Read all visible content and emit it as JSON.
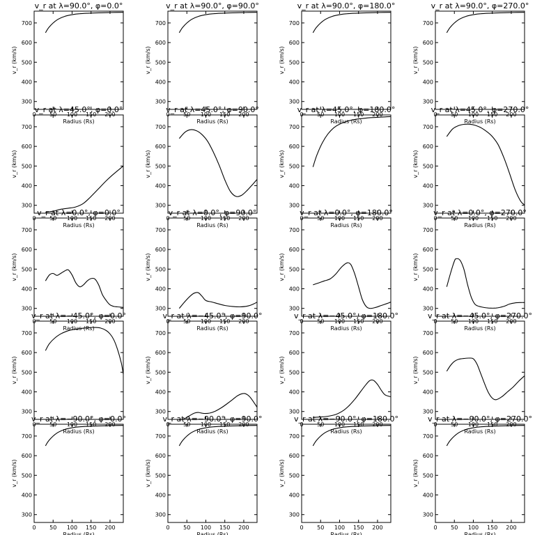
{
  "chart_data": [
    {
      "type": "line",
      "title": "v_r at λ=90.0°, φ=0.0°",
      "xlabel": "Radius (Rs)",
      "ylabel": "v_r (km/s)",
      "xlim": [
        0,
        235
      ],
      "ylim": [
        260,
        760
      ],
      "x": [
        30,
        40,
        60,
        80,
        100,
        120,
        150,
        180,
        200,
        235
      ],
      "values": [
        650,
        680,
        715,
        733,
        742,
        747,
        750,
        752,
        753,
        754
      ]
    },
    {
      "type": "line",
      "title": "v_r at λ=90.0°, φ=90.0°",
      "xlabel": "Radius (Rs)",
      "ylabel": "v_r (km/s)",
      "xlim": [
        0,
        235
      ],
      "ylim": [
        260,
        760
      ],
      "x": [
        30,
        40,
        60,
        80,
        100,
        120,
        150,
        180,
        200,
        235
      ],
      "values": [
        650,
        680,
        715,
        733,
        742,
        747,
        750,
        752,
        753,
        754
      ]
    },
    {
      "type": "line",
      "title": "v_r at λ=90.0°, φ=180.0°",
      "xlabel": "Radius (Rs)",
      "ylabel": "v_r (km/s)",
      "xlim": [
        0,
        235
      ],
      "ylim": [
        260,
        760
      ],
      "x": [
        30,
        40,
        60,
        80,
        100,
        120,
        150,
        180,
        200,
        235
      ],
      "values": [
        650,
        680,
        715,
        733,
        742,
        747,
        750,
        752,
        753,
        754
      ]
    },
    {
      "type": "line",
      "title": "v_r at λ=90.0°, φ=270.0°",
      "xlabel": "Radius (Rs)",
      "ylabel": "v_r (km/s)",
      "xlim": [
        0,
        235
      ],
      "ylim": [
        260,
        760
      ],
      "x": [
        30,
        40,
        60,
        80,
        100,
        120,
        150,
        180,
        200,
        235
      ],
      "values": [
        650,
        680,
        715,
        733,
        742,
        747,
        750,
        752,
        753,
        754
      ]
    },
    {
      "type": "line",
      "title": "v_r at λ=45.0°, φ=0.0°",
      "xlabel": "Radius (Rs)",
      "ylabel": "v_r (km/s)",
      "xlim": [
        0,
        235
      ],
      "ylim": [
        260,
        760
      ],
      "x": [
        30,
        50,
        70,
        90,
        110,
        130,
        150,
        170,
        190,
        210,
        235
      ],
      "values": [
        265,
        270,
        280,
        285,
        292,
        310,
        345,
        385,
        425,
        460,
        500
      ]
    },
    {
      "type": "line",
      "title": "v_r at λ=45.0°, φ=90.0°",
      "xlabel": "Radius (Rs)",
      "ylabel": "v_r (km/s)",
      "xlim": [
        0,
        235
      ],
      "ylim": [
        260,
        760
      ],
      "x": [
        30,
        45,
        60,
        75,
        90,
        105,
        120,
        135,
        150,
        165,
        180,
        195,
        210,
        225,
        235
      ],
      "values": [
        640,
        672,
        685,
        680,
        660,
        625,
        570,
        505,
        430,
        370,
        345,
        352,
        378,
        410,
        432
      ]
    },
    {
      "type": "line",
      "title": "v_r at λ=45.0°, φ=180.0°",
      "xlabel": "Radius (Rs)",
      "ylabel": "v_r (km/s)",
      "xlim": [
        0,
        235
      ],
      "ylim": [
        260,
        760
      ],
      "x": [
        30,
        40,
        55,
        70,
        85,
        100,
        120,
        140,
        160,
        180,
        200,
        220,
        235
      ],
      "values": [
        495,
        555,
        620,
        665,
        695,
        713,
        728,
        737,
        742,
        746,
        748,
        750,
        752
      ]
    },
    {
      "type": "line",
      "title": "v_r at λ=45.0°, φ=270.0°",
      "xlabel": "Radius (Rs)",
      "ylabel": "v_r (km/s)",
      "xlim": [
        0,
        235
      ],
      "ylim": [
        260,
        760
      ],
      "x": [
        30,
        45,
        60,
        75,
        90,
        105,
        120,
        135,
        150,
        165,
        180,
        195,
        210,
        225,
        235
      ],
      "values": [
        650,
        688,
        705,
        712,
        713,
        707,
        695,
        676,
        650,
        610,
        545,
        465,
        380,
        320,
        302
      ]
    },
    {
      "type": "line",
      "title": "v_r at λ=0.0°, φ=0.0°",
      "xlabel": "Radius (Rs)",
      "ylabel": "v_r (km/s)",
      "xlim": [
        0,
        235
      ],
      "ylim": [
        260,
        760
      ],
      "x": [
        30,
        40,
        50,
        60,
        70,
        80,
        90,
        100,
        110,
        120,
        130,
        140,
        150,
        160,
        170,
        180,
        190,
        200,
        210,
        220,
        235
      ],
      "values": [
        440,
        470,
        478,
        468,
        478,
        490,
        496,
        470,
        430,
        410,
        420,
        440,
        452,
        450,
        420,
        370,
        340,
        318,
        310,
        308,
        305
      ]
    },
    {
      "type": "line",
      "title": "v_r at λ=0.0°, φ=90.0°",
      "xlabel": "Radius (Rs)",
      "ylabel": "v_r (km/s)",
      "xlim": [
        0,
        235
      ],
      "ylim": [
        260,
        760
      ],
      "x": [
        30,
        45,
        60,
        70,
        80,
        90,
        100,
        115,
        130,
        150,
        170,
        190,
        210,
        225,
        235
      ],
      "values": [
        300,
        335,
        365,
        378,
        380,
        362,
        340,
        333,
        325,
        315,
        310,
        308,
        312,
        322,
        332
      ]
    },
    {
      "type": "line",
      "title": "v_r at λ=0.0°, φ=180.0°",
      "xlabel": "Radius (Rs)",
      "ylabel": "v_r (km/s)",
      "xlim": [
        0,
        235
      ],
      "ylim": [
        260,
        760
      ],
      "x": [
        30,
        45,
        60,
        75,
        90,
        105,
        120,
        130,
        140,
        150,
        160,
        170,
        180,
        195,
        210,
        225,
        235
      ],
      "values": [
        420,
        430,
        440,
        450,
        475,
        510,
        532,
        522,
        475,
        410,
        345,
        310,
        300,
        305,
        315,
        325,
        332
      ]
    },
    {
      "type": "line",
      "title": "v_r at λ=0.0°, φ=270.0°",
      "xlabel": "Radius (Rs)",
      "ylabel": "v_r (km/s)",
      "xlim": [
        0,
        235
      ],
      "ylim": [
        260,
        760
      ],
      "x": [
        30,
        40,
        50,
        55,
        65,
        75,
        85,
        95,
        105,
        120,
        140,
        160,
        180,
        195,
        210,
        225,
        235
      ],
      "values": [
        410,
        480,
        540,
        553,
        545,
        500,
        420,
        355,
        320,
        308,
        302,
        302,
        310,
        322,
        328,
        330,
        330
      ]
    },
    {
      "type": "line",
      "title": "v_r at λ=−45.0°, φ=0.0°",
      "xlabel": "Radius (Rs)",
      "ylabel": "v_r (km/s)",
      "xlim": [
        0,
        235
      ],
      "ylim": [
        260,
        760
      ],
      "x": [
        30,
        40,
        55,
        70,
        85,
        100,
        120,
        140,
        160,
        175,
        190,
        200,
        210,
        220,
        230,
        235
      ],
      "values": [
        610,
        645,
        675,
        695,
        708,
        716,
        722,
        726,
        728,
        725,
        712,
        695,
        665,
        615,
        545,
        490
      ]
    },
    {
      "type": "line",
      "title": "v_r at λ=−45.0°, φ=90.0°",
      "xlabel": "Radius (Rs)",
      "ylabel": "v_r (km/s)",
      "xlim": [
        0,
        235
      ],
      "ylim": [
        260,
        760
      ],
      "x": [
        30,
        45,
        60,
        70,
        80,
        95,
        110,
        125,
        140,
        155,
        170,
        185,
        200,
        210,
        220,
        235
      ],
      "values": [
        258,
        265,
        282,
        292,
        295,
        290,
        292,
        302,
        318,
        338,
        360,
        382,
        392,
        385,
        365,
        322
      ]
    },
    {
      "type": "line",
      "title": "v_r at λ=−45.0°, φ=180.0°",
      "xlabel": "Radius (Rs)",
      "ylabel": "v_r (km/s)",
      "xlim": [
        0,
        235
      ],
      "ylim": [
        260,
        760
      ],
      "x": [
        30,
        50,
        70,
        90,
        110,
        125,
        140,
        155,
        170,
        180,
        190,
        200,
        210,
        220,
        235
      ],
      "values": [
        270,
        272,
        276,
        285,
        305,
        330,
        362,
        400,
        438,
        458,
        458,
        438,
        408,
        385,
        375
      ]
    },
    {
      "type": "line",
      "title": "v_r at λ=−45.0°, φ=270.0°",
      "xlabel": "Radius (Rs)",
      "ylabel": "v_r (km/s)",
      "xlim": [
        0,
        235
      ],
      "ylim": [
        260,
        760
      ],
      "x": [
        30,
        40,
        50,
        60,
        75,
        90,
        100,
        110,
        120,
        130,
        140,
        150,
        160,
        175,
        190,
        205,
        220,
        235
      ],
      "values": [
        505,
        535,
        555,
        565,
        570,
        572,
        568,
        540,
        490,
        440,
        395,
        368,
        360,
        375,
        400,
        425,
        455,
        482
      ]
    },
    {
      "type": "line",
      "title": "v_r at λ=−90.0°, φ=0.0°",
      "xlabel": "Radius (Rs)",
      "ylabel": "v_r (km/s)",
      "xlim": [
        0,
        235
      ],
      "ylim": [
        260,
        760
      ],
      "x": [
        30,
        40,
        60,
        80,
        100,
        120,
        150,
        180,
        200,
        235
      ],
      "values": [
        650,
        680,
        715,
        733,
        742,
        747,
        750,
        752,
        753,
        754
      ]
    },
    {
      "type": "line",
      "title": "v_r at λ=−90.0°, φ=90.0°",
      "xlabel": "Radius (Rs)",
      "ylabel": "v_r (km/s)",
      "xlim": [
        0,
        235
      ],
      "ylim": [
        260,
        760
      ],
      "x": [
        30,
        40,
        60,
        80,
        100,
        120,
        150,
        180,
        200,
        235
      ],
      "values": [
        650,
        680,
        715,
        733,
        742,
        747,
        750,
        752,
        753,
        754
      ]
    },
    {
      "type": "line",
      "title": "v_r at λ=−90.0°, φ=180.0°",
      "xlabel": "Radius (Rs)",
      "ylabel": "v_r (km/s)",
      "xlim": [
        0,
        235
      ],
      "ylim": [
        260,
        760
      ],
      "x": [
        30,
        40,
        60,
        80,
        100,
        120,
        150,
        180,
        200,
        235
      ],
      "values": [
        650,
        680,
        715,
        733,
        742,
        747,
        750,
        752,
        753,
        754
      ]
    },
    {
      "type": "line",
      "title": "v_r at λ=−90.0°, φ=270.0°",
      "xlabel": "Radius (Rs)",
      "ylabel": "v_r (km/s)",
      "xlim": [
        0,
        235
      ],
      "ylim": [
        260,
        760
      ],
      "x": [
        30,
        40,
        60,
        80,
        100,
        120,
        150,
        180,
        200,
        235
      ],
      "values": [
        650,
        680,
        715,
        733,
        742,
        747,
        750,
        752,
        753,
        754
      ]
    }
  ],
  "shared": {
    "x_ticks": [
      0,
      50,
      100,
      150,
      200
    ],
    "y_ticks": [
      300,
      400,
      500,
      600,
      700
    ],
    "line_color": "#000000",
    "grid": false
  }
}
